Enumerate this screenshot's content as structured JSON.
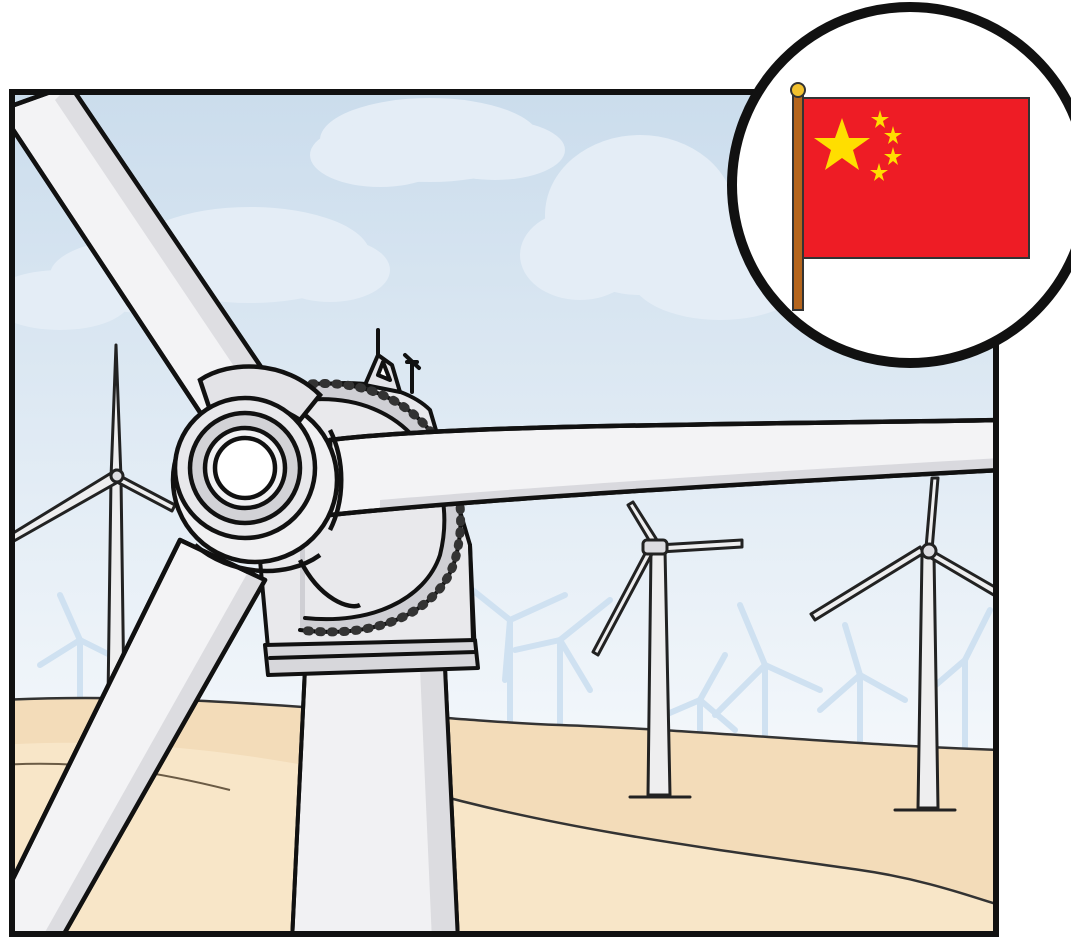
{
  "illustration": {
    "subject": "wind-farm",
    "badge": "china-flag"
  },
  "colors": {
    "sky_top": "#cfe0ef",
    "sky_bottom": "#f4f8fc",
    "cloud": "#e6eef6",
    "sand_light": "#f7e3c4",
    "sand_dark": "#eed3ad",
    "turbine_white": "#f4f4f6",
    "turbine_shade": "#d9d9de",
    "outline": "#111111",
    "faint_turbine": "#cfe1f1",
    "flag_red": "#ee1c25",
    "flag_star": "#ffde00",
    "flagpole": "#b5651d",
    "finial": "#f2c12e"
  }
}
